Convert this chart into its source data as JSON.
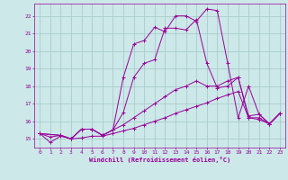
{
  "xlabel": "Windchill (Refroidissement éolien,°C)",
  "bg_color": "#cce8e8",
  "grid_color": "#aacccc",
  "line_color": "#990099",
  "xlim": [
    -0.5,
    23.5
  ],
  "ylim": [
    14.5,
    22.7
  ],
  "yticks": [
    15,
    16,
    17,
    18,
    19,
    20,
    21,
    22
  ],
  "xticks": [
    0,
    1,
    2,
    3,
    4,
    5,
    6,
    7,
    8,
    9,
    10,
    11,
    12,
    13,
    14,
    15,
    16,
    17,
    18,
    19,
    20,
    21,
    22,
    23
  ],
  "lines": [
    {
      "x": [
        0,
        1,
        2,
        3,
        4,
        5,
        6,
        7,
        8,
        9,
        10,
        11,
        12,
        13,
        14,
        15,
        16,
        17,
        18,
        19,
        20,
        21,
        22,
        23
      ],
      "y": [
        15.3,
        14.8,
        15.15,
        15.0,
        15.05,
        15.15,
        15.15,
        15.3,
        15.45,
        15.6,
        15.8,
        16.0,
        16.2,
        16.45,
        16.65,
        16.85,
        17.05,
        17.3,
        17.5,
        17.7,
        16.2,
        16.1,
        15.85,
        16.45
      ]
    },
    {
      "x": [
        0,
        1,
        2,
        3,
        4,
        5,
        6,
        7,
        8,
        9,
        10,
        11,
        12,
        13,
        14,
        15,
        16,
        17,
        18,
        19,
        20,
        21,
        22,
        23
      ],
      "y": [
        15.3,
        15.1,
        15.2,
        15.0,
        15.55,
        15.55,
        15.2,
        15.5,
        15.8,
        16.2,
        16.6,
        17.0,
        17.4,
        17.8,
        18.0,
        18.3,
        18.0,
        18.0,
        18.3,
        18.5,
        16.2,
        16.2,
        15.85,
        16.45
      ]
    },
    {
      "x": [
        0,
        2,
        3,
        4,
        5,
        6,
        7,
        8,
        9,
        10,
        11,
        12,
        13,
        14,
        15,
        16,
        17,
        18,
        19,
        20,
        21,
        22,
        23
      ],
      "y": [
        15.3,
        15.2,
        15.0,
        15.55,
        15.55,
        15.2,
        15.5,
        16.5,
        18.5,
        19.3,
        19.5,
        21.3,
        21.3,
        21.2,
        21.8,
        19.3,
        17.9,
        18.0,
        18.5,
        16.3,
        16.4,
        15.85,
        16.45
      ]
    },
    {
      "x": [
        0,
        2,
        3,
        4,
        5,
        6,
        7,
        8,
        9,
        10,
        11,
        12,
        13,
        14,
        15,
        16,
        17,
        18,
        19,
        20,
        21,
        22,
        23
      ],
      "y": [
        15.3,
        15.2,
        15.0,
        15.55,
        15.55,
        15.2,
        15.5,
        18.5,
        20.4,
        20.6,
        21.35,
        21.1,
        22.0,
        22.0,
        21.7,
        22.4,
        22.3,
        19.3,
        16.2,
        18.0,
        16.4,
        15.85,
        16.45
      ]
    }
  ]
}
